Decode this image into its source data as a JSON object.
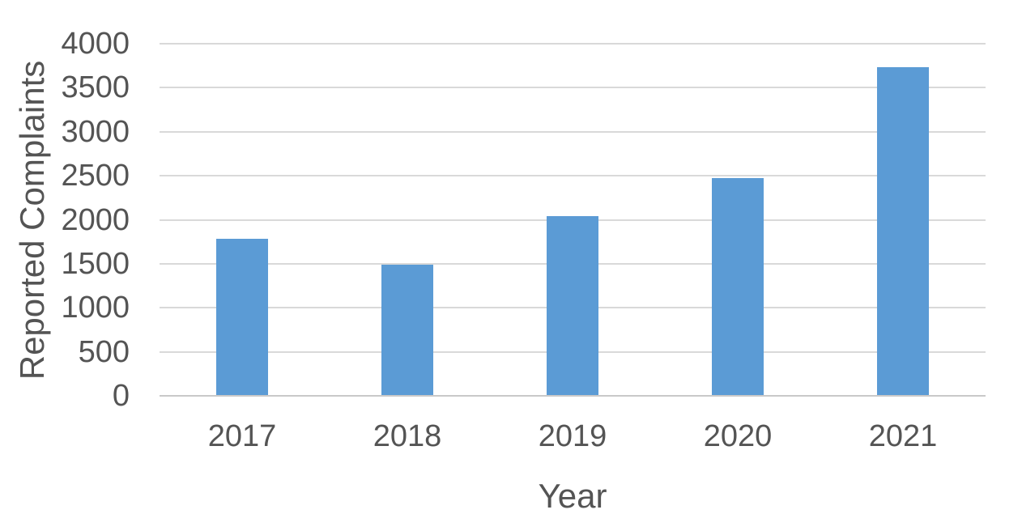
{
  "chart_data": {
    "type": "bar",
    "title": "",
    "xlabel": "Year",
    "ylabel": "Reported Complaints",
    "categories": [
      "2017",
      "2018",
      "2019",
      "2020",
      "2021"
    ],
    "values": [
      1780,
      1490,
      2040,
      2470,
      3730
    ],
    "yticks": [
      0,
      500,
      1000,
      1500,
      2000,
      2500,
      3000,
      3500,
      4000
    ],
    "ylim": [
      0,
      4000
    ],
    "grid": true,
    "legend": false,
    "colors": {
      "bar": "#5B9BD5",
      "gridline": "#D9D9D9",
      "axis_line": "#C9C9C9",
      "text": "#545454",
      "background": "#FFFFFF"
    }
  }
}
